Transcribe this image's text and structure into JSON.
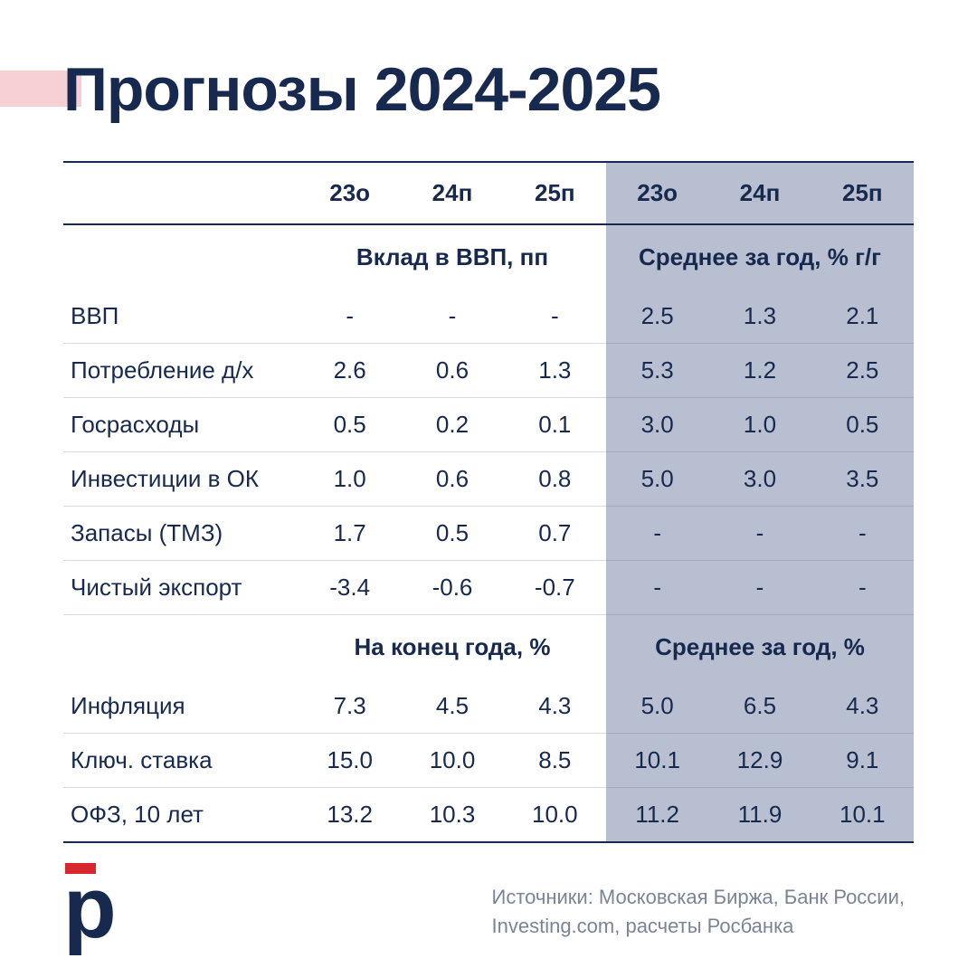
{
  "title": "Прогнозы 2024-2025",
  "colors": {
    "text_primary": "#17294e",
    "accent_pink": "#f6d0d4",
    "accent_red": "#d5282f",
    "shaded_bg": "#b7bfd0",
    "divider": "#d6dae2",
    "muted": "#7a8496",
    "background": "#ffffff"
  },
  "table": {
    "year_headers": [
      "23о",
      "24п",
      "25п",
      "23о",
      "24п",
      "25п"
    ],
    "block1": {
      "sub_left": "Вклад в ВВП, пп",
      "sub_right": "Среднее за год, % г/г",
      "rows": [
        {
          "label": "ВВП",
          "vals": [
            "-",
            "-",
            "-",
            "2.5",
            "1.3",
            "2.1"
          ]
        },
        {
          "label": "Потребление д/х",
          "vals": [
            "2.6",
            "0.6",
            "1.3",
            "5.3",
            "1.2",
            "2.5"
          ]
        },
        {
          "label": "Госрасходы",
          "vals": [
            "0.5",
            "0.2",
            "0.1",
            "3.0",
            "1.0",
            "0.5"
          ]
        },
        {
          "label": "Инвестиции в ОК",
          "vals": [
            "1.0",
            "0.6",
            "0.8",
            "5.0",
            "3.0",
            "3.5"
          ]
        },
        {
          "label": "Запасы (ТМЗ)",
          "vals": [
            "1.7",
            "0.5",
            "0.7",
            "-",
            "-",
            "-"
          ]
        },
        {
          "label": "Чистый экспорт",
          "vals": [
            "-3.4",
            "-0.6",
            "-0.7",
            "-",
            "-",
            "-"
          ]
        }
      ]
    },
    "block2": {
      "sub_left": "На конец года, %",
      "sub_right": "Среднее за год, %",
      "rows": [
        {
          "label": "Инфляция",
          "vals": [
            "7.3",
            "4.5",
            "4.3",
            "5.0",
            "6.5",
            "4.3"
          ]
        },
        {
          "label": "Ключ. ставка",
          "vals": [
            "15.0",
            "10.0",
            "8.5",
            "10.1",
            "12.9",
            "9.1"
          ]
        },
        {
          "label": "ОФЗ, 10 лет",
          "vals": [
            "13.2",
            "10.3",
            "10.0",
            "11.2",
            "11.9",
            "10.1"
          ]
        }
      ]
    }
  },
  "footer": {
    "logo_glyph": "р",
    "sources_line1": "Источники: Московская Биржа, Банк России,",
    "sources_line2": "Investing.com, расчеты Росбанка"
  }
}
